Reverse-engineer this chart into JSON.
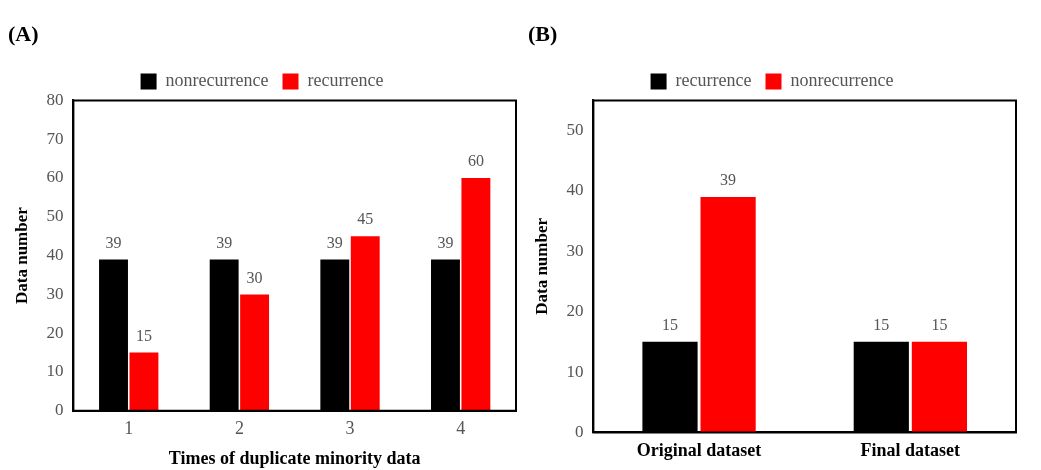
{
  "chart_data": [
    {
      "type": "bar",
      "title": "(A)",
      "xlabel": "Times of duplicate minority data",
      "ylabel": "Data number",
      "categories": [
        "1",
        "2",
        "3",
        "4"
      ],
      "series": [
        {
          "name": "nonrecurrence",
          "color": "#000000",
          "values": [
            39,
            39,
            39,
            39
          ]
        },
        {
          "name": "recurrence",
          "color": "#ff0000",
          "values": [
            15,
            30,
            45,
            60
          ]
        }
      ],
      "ylim": [
        0,
        80
      ],
      "yticks": [
        0,
        10,
        20,
        30,
        40,
        50,
        60,
        70,
        80
      ],
      "grid": false,
      "legend": "top",
      "data_labels": true
    },
    {
      "type": "bar",
      "title": "(B)",
      "ylabel": "Data number",
      "categories": [
        "Original dataset",
        "Final dataset"
      ],
      "series": [
        {
          "name": "recurrence",
          "color": "#000000",
          "values": [
            15,
            15
          ]
        },
        {
          "name": "nonrecurrence",
          "color": "#ff0000",
          "values": [
            39,
            15
          ]
        }
      ],
      "ylim": [
        0,
        55
      ],
      "yticks": [
        0,
        10,
        20,
        30,
        40,
        50
      ],
      "grid": false,
      "legend": "top",
      "data_labels": true
    }
  ]
}
